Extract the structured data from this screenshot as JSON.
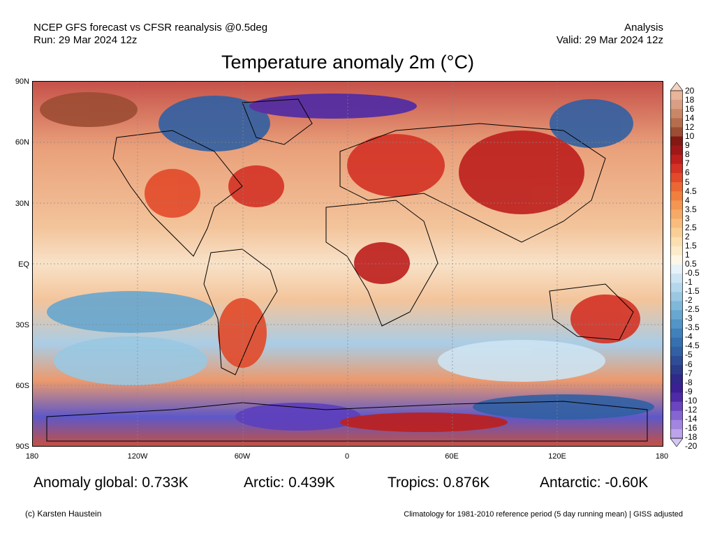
{
  "header": {
    "line1_left": "NCEP GFS forecast vs CFSR reanalysis @0.5deg",
    "line2_left": "Run: 29 Mar 2024 12z",
    "line1_right": "Analysis",
    "line2_right": "Valid: 29 Mar 2024 12z"
  },
  "title": "Temperature anomaly 2m (°C)",
  "map": {
    "lat_labels": [
      "90N",
      "60N",
      "30N",
      "EQ",
      "30S",
      "60S",
      "90S"
    ],
    "lon_labels": [
      "180",
      "120W",
      "60W",
      "0",
      "60E",
      "120E",
      "180"
    ]
  },
  "colorbar": {
    "labels": [
      "20",
      "18",
      "16",
      "14",
      "12",
      "10",
      "9",
      "8",
      "7",
      "6",
      "5",
      "4.5",
      "4",
      "3.5",
      "3",
      "2.5",
      "2",
      "1.5",
      "1",
      "0.5",
      "-0.5",
      "-1",
      "-1.5",
      "-2",
      "-2.5",
      "-3",
      "-3.5",
      "-4",
      "-4.5",
      "-5",
      "-6",
      "-7",
      "-8",
      "-9",
      "-10",
      "-12",
      "-14",
      "-16",
      "-18",
      "-20"
    ],
    "colors": [
      "#f6d2c0",
      "#e8b49a",
      "#d99f84",
      "#c98767",
      "#b66d4d",
      "#9c4d33",
      "#821913",
      "#a01717",
      "#bd1f1d",
      "#d43225",
      "#e24a2a",
      "#eb6733",
      "#f17f3e",
      "#f49651",
      "#f6aa66",
      "#f8bd7d",
      "#f9cf96",
      "#fadfb0",
      "#fbebc9",
      "#fdf6e6",
      "#e6f1fa",
      "#cde4f2",
      "#b4d7ec",
      "#9ac8e2",
      "#80b8d9",
      "#68a7cf",
      "#5295c6",
      "#4181bb",
      "#3670ae",
      "#3160a3",
      "#2f4c97",
      "#2d3b8b",
      "#30298a",
      "#3b2093",
      "#4e2aa6",
      "#6a45be",
      "#8565cf",
      "#a185df",
      "#bba4ea",
      "#d5c6f4"
    ]
  },
  "stats": {
    "global": "Anomaly global: 0.733K",
    "arctic": "Arctic: 0.439K",
    "tropics": "Tropics: 0.876K",
    "antarctic": "Antarctic: -0.60K"
  },
  "footer": {
    "left": "(c) Karsten Haustein",
    "right": "Climatology for 1981-2010 reference period (5 day running mean) | GISS adjusted"
  }
}
